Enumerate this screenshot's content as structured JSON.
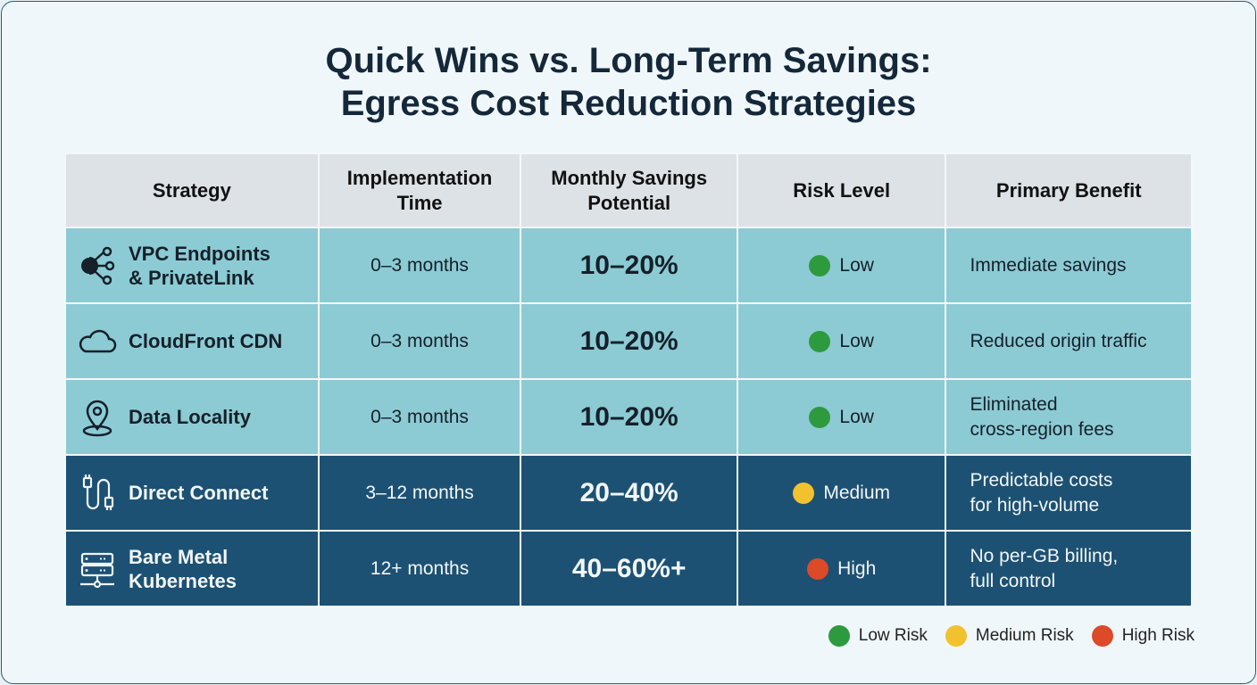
{
  "title_line1": "Quick Wins vs. Long-Term Savings:",
  "title_line2": "Egress Cost Reduction Strategies",
  "headers": [
    "Strategy",
    "Implementation Time",
    "Monthly Savings Potential",
    "Risk Level",
    "Primary Benefit"
  ],
  "headers_split": [
    [
      "Strategy"
    ],
    [
      "Implementation",
      "Time"
    ],
    [
      "Monthly Savings",
      "Potential"
    ],
    [
      "Risk Level"
    ],
    [
      "Primary Benefit"
    ]
  ],
  "colors": {
    "low": "#2e9a3e",
    "medium": "#f2c12e",
    "high": "#dd4a28",
    "light_row": "#8ccbd4",
    "dark_row": "#1c5173",
    "header": "#dde2e6"
  },
  "rows": [
    {
      "icon": "network-endpoint-icon",
      "strategy": [
        "VPC Endpoints",
        "& PrivateLink"
      ],
      "time": "0–3 months",
      "savings": "10–20%",
      "risk": "Low",
      "risk_key": "low",
      "benefit": [
        "Immediate savings"
      ],
      "tone": "light"
    },
    {
      "icon": "cloud-icon",
      "strategy": [
        "CloudFront CDN"
      ],
      "time": "0–3 months",
      "savings": "10–20%",
      "risk": "Low",
      "risk_key": "low",
      "benefit": [
        "Reduced origin traffic"
      ],
      "tone": "light"
    },
    {
      "icon": "location-pin-icon",
      "strategy": [
        "Data Locality"
      ],
      "time": "0–3 months",
      "savings": "10–20%",
      "risk": "Low",
      "risk_key": "low",
      "benefit": [
        "Eliminated",
        "cross-region fees"
      ],
      "tone": "light"
    },
    {
      "icon": "cable-icon",
      "strategy": [
        "Direct Connect"
      ],
      "time": "3–12 months",
      "savings": "20–40%",
      "risk": "Medium",
      "risk_key": "medium",
      "benefit": [
        "Predictable costs",
        "for high-volume"
      ],
      "tone": "dark"
    },
    {
      "icon": "server-icon",
      "strategy": [
        "Bare Metal",
        "Kubernetes"
      ],
      "time": "12+ months",
      "savings": "40–60%+",
      "risk": "High",
      "risk_key": "high",
      "benefit": [
        "No per-GB billing,",
        "full control"
      ],
      "tone": "dark"
    }
  ],
  "legend": [
    {
      "label": "Low Risk",
      "key": "low"
    },
    {
      "label": "Medium Risk",
      "key": "medium"
    },
    {
      "label": "High Risk",
      "key": "high"
    }
  ]
}
